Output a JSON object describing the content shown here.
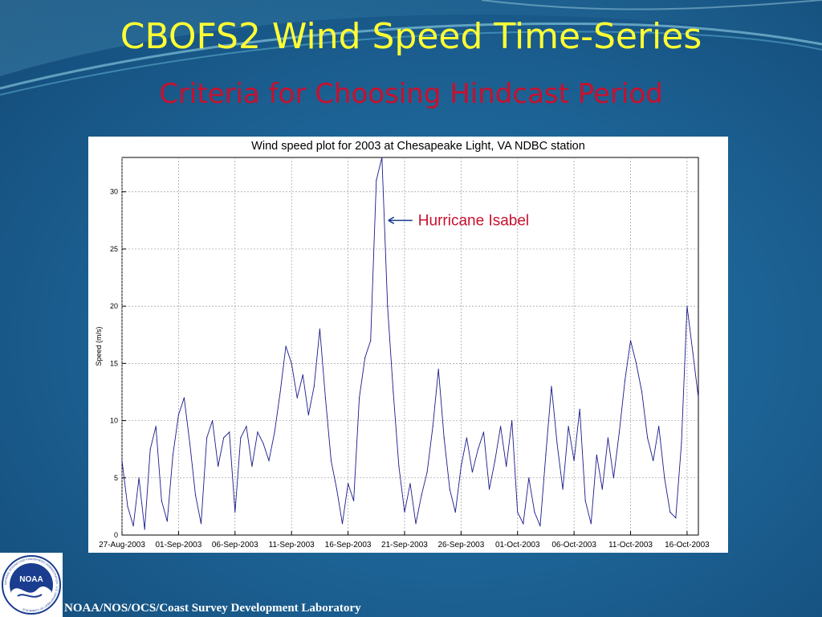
{
  "slide": {
    "title": "CBOFS2 Wind Speed Time-Series",
    "subtitle": "Criteria for Choosing Hindcast Period",
    "footer": "NOAA/NOS/OCS/Coast Survey Development Laboratory",
    "logo_text": "NOAA",
    "logo_ring_text": "NATIONAL OCEANIC AND ATMOSPHERIC ADMINISTRATION · U.S. DEPARTMENT OF COMMERCE",
    "colors": {
      "title": "#ffff33",
      "subtitle": "#c8102e",
      "background": "#1d6496"
    }
  },
  "chart_data": {
    "type": "line",
    "title": "Wind speed plot for 2003 at Chesapeake Light, VA NDBC station",
    "xlabel": "",
    "ylabel": "Speed (m/s)",
    "xlim": [
      "2003-08-27",
      "2003-10-17"
    ],
    "ylim": [
      0,
      33
    ],
    "xticks": [
      "27-Aug-2003",
      "01-Sep-2003",
      "06-Sep-2003",
      "11-Sep-2003",
      "16-Sep-2003",
      "21-Sep-2003",
      "26-Sep-2003",
      "01-Oct-2003",
      "06-Oct-2003",
      "11-Oct-2003",
      "16-Oct-2003"
    ],
    "yticks": [
      0,
      5,
      10,
      15,
      20,
      25,
      30
    ],
    "grid": true,
    "color": "#1a1a8c",
    "annotation": {
      "text": "Hurricane Isabel",
      "x": "2003-09-19",
      "y": 27.5,
      "color": "#c8102e"
    },
    "series": [
      {
        "x": [
          "2003-08-27 00:00",
          "2003-08-27 12:00",
          "2003-08-28 00:00",
          "2003-08-28 12:00",
          "2003-08-29 00:00",
          "2003-08-29 12:00",
          "2003-08-30 00:00",
          "2003-08-30 12:00",
          "2003-08-31 00:00",
          "2003-08-31 12:00",
          "2003-09-01 00:00",
          "2003-09-01 12:00",
          "2003-09-02 00:00",
          "2003-09-02 12:00",
          "2003-09-03 00:00",
          "2003-09-03 12:00",
          "2003-09-04 00:00",
          "2003-09-04 12:00",
          "2003-09-05 00:00",
          "2003-09-05 12:00",
          "2003-09-06 00:00",
          "2003-09-06 12:00",
          "2003-09-07 00:00",
          "2003-09-07 12:00",
          "2003-09-08 00:00",
          "2003-09-08 12:00",
          "2003-09-09 00:00",
          "2003-09-09 12:00",
          "2003-09-10 00:00",
          "2003-09-10 12:00",
          "2003-09-11 00:00",
          "2003-09-11 12:00",
          "2003-09-12 00:00",
          "2003-09-12 12:00",
          "2003-09-13 00:00",
          "2003-09-13 12:00",
          "2003-09-14 00:00",
          "2003-09-14 12:00",
          "2003-09-15 00:00",
          "2003-09-15 12:00",
          "2003-09-16 00:00",
          "2003-09-16 12:00",
          "2003-09-17 00:00",
          "2003-09-17 12:00",
          "2003-09-18 00:00",
          "2003-09-18 12:00",
          "2003-09-19 00:00",
          "2003-09-19 12:00",
          "2003-09-20 00:00",
          "2003-09-20 12:00",
          "2003-09-21 00:00",
          "2003-09-21 12:00",
          "2003-09-22 00:00",
          "2003-09-22 12:00",
          "2003-09-23 00:00",
          "2003-09-23 12:00",
          "2003-09-24 00:00",
          "2003-09-24 12:00",
          "2003-09-25 00:00",
          "2003-09-25 12:00",
          "2003-09-26 00:00",
          "2003-09-26 12:00",
          "2003-09-27 00:00",
          "2003-09-27 12:00",
          "2003-09-28 00:00",
          "2003-09-28 12:00",
          "2003-09-29 00:00",
          "2003-09-29 12:00",
          "2003-09-30 00:00",
          "2003-09-30 12:00",
          "2003-10-01 00:00",
          "2003-10-01 12:00",
          "2003-10-02 00:00",
          "2003-10-02 12:00",
          "2003-10-03 00:00",
          "2003-10-03 12:00",
          "2003-10-04 00:00",
          "2003-10-04 12:00",
          "2003-10-05 00:00",
          "2003-10-05 12:00",
          "2003-10-06 00:00",
          "2003-10-06 12:00",
          "2003-10-07 00:00",
          "2003-10-07 12:00",
          "2003-10-08 00:00",
          "2003-10-08 12:00",
          "2003-10-09 00:00",
          "2003-10-09 12:00",
          "2003-10-10 00:00",
          "2003-10-10 12:00",
          "2003-10-11 00:00",
          "2003-10-11 12:00",
          "2003-10-12 00:00",
          "2003-10-12 12:00",
          "2003-10-13 00:00",
          "2003-10-13 12:00",
          "2003-10-14 00:00",
          "2003-10-14 12:00",
          "2003-10-15 00:00",
          "2003-10-15 12:00",
          "2003-10-16 00:00",
          "2003-10-16 12:00",
          "2003-10-17 00:00"
        ],
        "y": [
          6.5,
          2.5,
          0.8,
          5.0,
          0.5,
          7.5,
          9.5,
          3.0,
          1.2,
          7.0,
          10.5,
          12.0,
          8.0,
          3.5,
          1.0,
          8.5,
          10.0,
          6.0,
          8.5,
          9.0,
          2.0,
          8.5,
          9.5,
          6.0,
          9.0,
          8.0,
          6.5,
          9.0,
          12.5,
          16.5,
          15.0,
          12.0,
          14.0,
          10.5,
          13.0,
          18.0,
          12.0,
          6.5,
          4.0,
          1.0,
          4.5,
          3.0,
          12.0,
          15.5,
          17.0,
          31.0,
          33.0,
          20.0,
          12.5,
          6.0,
          2.0,
          4.5,
          1.0,
          3.5,
          5.5,
          9.5,
          14.5,
          8.5,
          4.0,
          2.0,
          6.0,
          8.5,
          5.5,
          7.5,
          9.0,
          4.0,
          6.5,
          9.5,
          6.0,
          10.0,
          2.0,
          1.0,
          5.0,
          2.0,
          0.8,
          7.0,
          13.0,
          8.0,
          4.0,
          9.5,
          6.5,
          11.0,
          3.0,
          1.0,
          7.0,
          4.0,
          8.5,
          5.0,
          9.0,
          13.5,
          17.0,
          15.0,
          12.5,
          8.5,
          6.5,
          9.5,
          5.0,
          2.0,
          1.5,
          8.0,
          20.0,
          16.0,
          12.0
        ]
      }
    ]
  }
}
